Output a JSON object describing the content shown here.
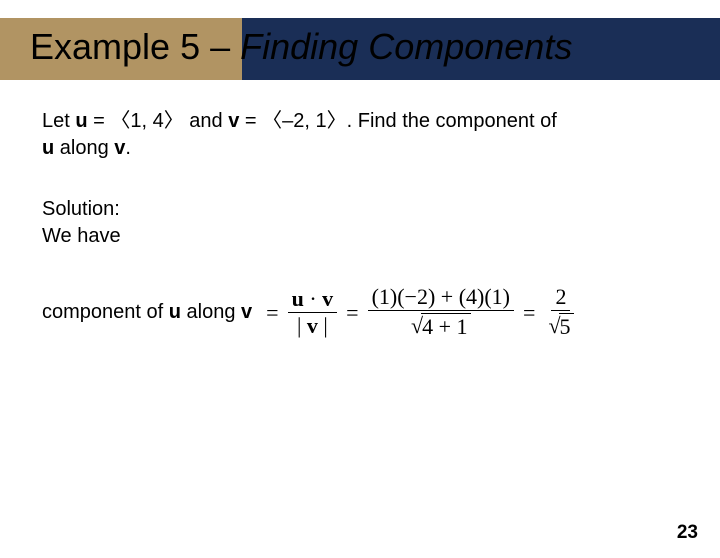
{
  "header": {
    "prefix": "Example 5 – ",
    "title_italic": "Finding Components",
    "colors": {
      "tan": "#b19463",
      "dark": "#1a2e56",
      "text": "#000000"
    }
  },
  "problem": {
    "let": "Let ",
    "u_label": "u",
    "u_eq": " = ",
    "u_open": "〈",
    "u_vals": "1, 4",
    "u_close": "〉",
    "and": " and ",
    "v_label": "v",
    "v_eq": " = ",
    "v_open": "〈",
    "v_vals": "–2, 1",
    "v_close": "〉",
    "period_find": ". Find the component of ",
    "u_label2": "u",
    "along": " along ",
    "v_label2": "v",
    "end": "."
  },
  "solution": {
    "label_line1": "Solution:",
    "label_line2": "We have"
  },
  "equation": {
    "lead": "component of ",
    "u": "u",
    "along": " along ",
    "v": "v",
    "frac1_num_u": "u",
    "frac1_num_dot": " · ",
    "frac1_num_v": "v",
    "frac1_den_bar_open": "| ",
    "frac1_den_v": "v",
    "frac1_den_bar_close": " |",
    "frac2_num": "(1)(−2) + (4)(1)",
    "frac2_den_radicand": "4 + 1",
    "frac3_num": "2",
    "frac3_den_radicand": "5",
    "eq": "="
  },
  "page_number": "23"
}
